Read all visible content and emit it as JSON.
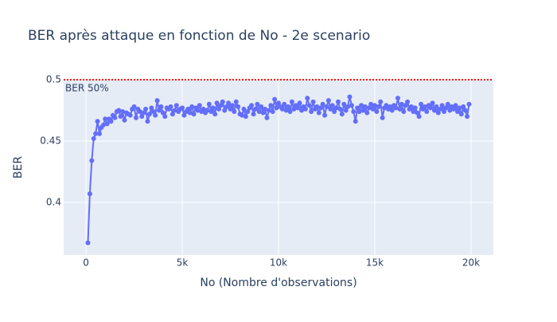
{
  "chart_data": {
    "type": "line",
    "title": "BER après attaque en fonction de No - 2e scenario",
    "x_label": "No (Nombre d'observations)",
    "y_label": "BER",
    "threshold": {
      "value": 0.5,
      "label": "BER 50%",
      "color": "#ff0000"
    },
    "x": [
      100,
      200,
      300,
      400,
      500,
      600,
      700,
      800,
      900,
      1000,
      1100,
      1200,
      1300,
      1400,
      1500,
      1600,
      1700,
      1800,
      1900,
      2000,
      2100,
      2200,
      2300,
      2400,
      2500,
      2600,
      2700,
      2800,
      2900,
      3000,
      3100,
      3200,
      3300,
      3400,
      3500,
      3600,
      3700,
      3800,
      3900,
      4000,
      4100,
      4200,
      4300,
      4400,
      4500,
      4600,
      4700,
      4800,
      4900,
      5000,
      5100,
      5200,
      5300,
      5400,
      5500,
      5600,
      5700,
      5800,
      5900,
      6000,
      6100,
      6200,
      6300,
      6400,
      6500,
      6600,
      6700,
      6800,
      6900,
      7000,
      7100,
      7200,
      7300,
      7400,
      7500,
      7600,
      7700,
      7800,
      7900,
      8000,
      8100,
      8200,
      8300,
      8400,
      8500,
      8600,
      8700,
      8800,
      8900,
      9000,
      9100,
      9200,
      9300,
      9400,
      9500,
      9600,
      9700,
      9800,
      9900,
      10000,
      10100,
      10200,
      10300,
      10400,
      10500,
      10600,
      10700,
      10800,
      10900,
      11000,
      11100,
      11200,
      11300,
      11400,
      11500,
      11600,
      11700,
      11800,
      11900,
      12000,
      12100,
      12200,
      12300,
      12400,
      12500,
      12600,
      12700,
      12800,
      12900,
      13000,
      13100,
      13200,
      13300,
      13400,
      13500,
      13600,
      13700,
      13800,
      13900,
      14000,
      14100,
      14200,
      14300,
      14400,
      14500,
      14600,
      14700,
      14800,
      14900,
      15000,
      15100,
      15200,
      15300,
      15400,
      15500,
      15600,
      15700,
      15800,
      15900,
      16000,
      16100,
      16200,
      16300,
      16400,
      16500,
      16600,
      16700,
      16800,
      16900,
      17000,
      17100,
      17200,
      17300,
      17400,
      17500,
      17600,
      17700,
      17800,
      17900,
      18000,
      18100,
      18200,
      18300,
      18400,
      18500,
      18600,
      18700,
      18800,
      18900,
      19000,
      19100,
      19200,
      19300,
      19400,
      19500,
      19600,
      19700,
      19800,
      19900
    ],
    "series": [
      {
        "color": "#636efa",
        "values": [
          0.367,
          0.407,
          0.434,
          0.452,
          0.456,
          0.466,
          0.456,
          0.461,
          0.463,
          0.468,
          0.464,
          0.468,
          0.466,
          0.471,
          0.469,
          0.474,
          0.475,
          0.47,
          0.474,
          0.467,
          0.473,
          0.472,
          0.471,
          0.476,
          0.478,
          0.469,
          0.476,
          0.474,
          0.47,
          0.473,
          0.476,
          0.466,
          0.472,
          0.477,
          0.474,
          0.471,
          0.483,
          0.475,
          0.478,
          0.473,
          0.47,
          0.477,
          0.476,
          0.478,
          0.472,
          0.475,
          0.479,
          0.474,
          0.476,
          0.477,
          0.471,
          0.474,
          0.476,
          0.473,
          0.478,
          0.472,
          0.477,
          0.475,
          0.479,
          0.474,
          0.476,
          0.473,
          0.475,
          0.48,
          0.474,
          0.477,
          0.472,
          0.481,
          0.476,
          0.479,
          0.482,
          0.475,
          0.478,
          0.481,
          0.476,
          0.479,
          0.474,
          0.482,
          0.478,
          0.472,
          0.471,
          0.476,
          0.47,
          0.474,
          0.477,
          0.479,
          0.472,
          0.476,
          0.48,
          0.474,
          0.478,
          0.473,
          0.476,
          0.469,
          0.475,
          0.479,
          0.474,
          0.484,
          0.477,
          0.481,
          0.478,
          0.476,
          0.48,
          0.475,
          0.478,
          0.474,
          0.482,
          0.476,
          0.479,
          0.477,
          0.481,
          0.475,
          0.478,
          0.476,
          0.485,
          0.479,
          0.474,
          0.482,
          0.476,
          0.478,
          0.473,
          0.477,
          0.48,
          0.471,
          0.478,
          0.483,
          0.476,
          0.479,
          0.474,
          0.477,
          0.482,
          0.476,
          0.472,
          0.48,
          0.475,
          0.478,
          0.486,
          0.479,
          0.474,
          0.466,
          0.477,
          0.474,
          0.479,
          0.475,
          0.478,
          0.473,
          0.477,
          0.48,
          0.476,
          0.479,
          0.474,
          0.478,
          0.482,
          0.469,
          0.477,
          0.479,
          0.476,
          0.478,
          0.475,
          0.479,
          0.477,
          0.485,
          0.476,
          0.48,
          0.474,
          0.479,
          0.482,
          0.476,
          0.478,
          0.474,
          0.477,
          0.473,
          0.47,
          0.48,
          0.476,
          0.478,
          0.474,
          0.479,
          0.477,
          0.481,
          0.475,
          0.478,
          0.473,
          0.476,
          0.479,
          0.474,
          0.477,
          0.48,
          0.475,
          0.478,
          0.476,
          0.479,
          0.474,
          0.477,
          0.472,
          0.478,
          0.475,
          0.47,
          0.48
        ]
      }
    ],
    "xlim": [
      -1160,
      21160
    ],
    "ylim": [
      0.357,
      0.5
    ],
    "xticks": [
      0,
      {
        "value": 5000,
        "label": "5k"
      },
      {
        "value": 10000,
        "label": "10k"
      },
      {
        "value": 15000,
        "label": "15k"
      },
      {
        "value": 20000,
        "label": "20k"
      }
    ],
    "yticks": [
      0.4,
      0.45,
      0.5
    ],
    "grid": true
  }
}
